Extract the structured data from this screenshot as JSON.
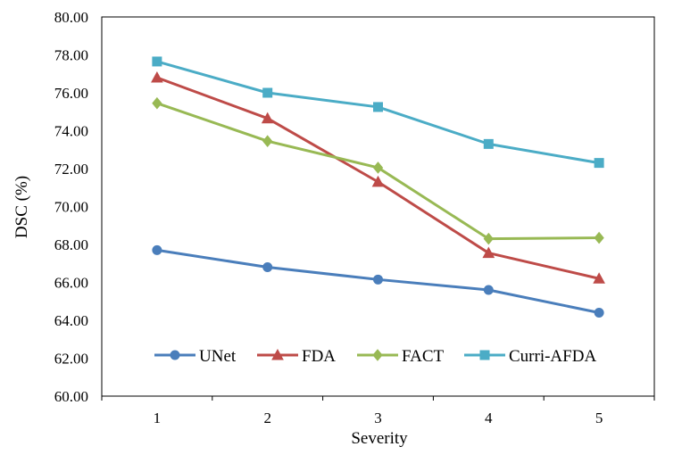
{
  "chart_data": {
    "type": "line",
    "title": "",
    "xlabel": "Severity",
    "ylabel": "DSC (%)",
    "categories": [
      "1",
      "2",
      "3",
      "4",
      "5"
    ],
    "ylim": [
      60,
      80
    ],
    "yticks": [
      "60.00",
      "62.00",
      "64.00",
      "66.00",
      "68.00",
      "70.00",
      "72.00",
      "74.00",
      "76.00",
      "78.00",
      "80.00"
    ],
    "grid": false,
    "legend_position": "bottom-inside",
    "series": [
      {
        "name": "UNet",
        "marker": "circle",
        "color": "#4a7ebb",
        "values": [
          67.7,
          66.8,
          66.15,
          65.6,
          64.4
        ]
      },
      {
        "name": "FDA",
        "marker": "triangle",
        "color": "#be4b48",
        "values": [
          76.8,
          74.65,
          71.3,
          67.55,
          66.2
        ]
      },
      {
        "name": "FACT",
        "marker": "diamond",
        "color": "#98b954",
        "values": [
          75.45,
          73.45,
          72.05,
          68.3,
          68.35
        ]
      },
      {
        "name": "Curri-AFDA",
        "marker": "square",
        "color": "#4bacc6",
        "values": [
          77.65,
          76.0,
          75.25,
          73.3,
          72.3
        ]
      }
    ]
  }
}
